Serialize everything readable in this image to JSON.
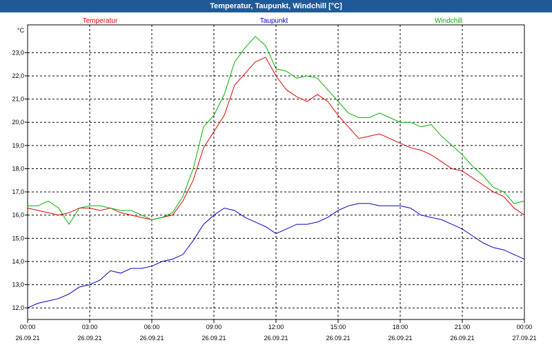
{
  "window": {
    "title": "Temperatur, Taupunkt, Windchill [°C]"
  },
  "chart_data": {
    "type": "line",
    "title": "Temperatur, Taupunkt, Windchill [°C]",
    "ylabel": "°C",
    "ylim": [
      11.5,
      24.2
    ],
    "yticks": [
      12,
      13,
      14,
      15,
      16,
      17,
      18,
      19,
      20,
      21,
      22,
      23
    ],
    "ytick_labels": [
      "12,0",
      "13,0",
      "14,0",
      "15,0",
      "16,0",
      "17,0",
      "18,0",
      "19,0",
      "20,0",
      "21,0",
      "22,0",
      "23,0"
    ],
    "xlim": [
      0,
      24
    ],
    "xticks": [
      0,
      3,
      6,
      9,
      12,
      15,
      18,
      21,
      24
    ],
    "xtick_time": [
      "00:00",
      "03:00",
      "06:00",
      "09:00",
      "12:00",
      "15:00",
      "18:00",
      "21:00",
      "00:00"
    ],
    "xtick_date": [
      "26.09.21",
      "26.09.21",
      "26.09.21",
      "26.09.21",
      "26.09.21",
      "26.09.21",
      "26.09.21",
      "26.09.21",
      "27.09.21"
    ],
    "grid": true,
    "legend_position": "top",
    "series": [
      {
        "name": "Temperatur",
        "color": "#e00000",
        "x": [
          0,
          0.5,
          1,
          1.5,
          2,
          2.5,
          3,
          3.5,
          4,
          4.5,
          5,
          5.5,
          6,
          6.5,
          7,
          7.5,
          8,
          8.5,
          9,
          9.5,
          10,
          10.5,
          11,
          11.5,
          12,
          12.5,
          13,
          13.5,
          14,
          14.5,
          15,
          15.5,
          16,
          16.5,
          17,
          17.5,
          18,
          18.5,
          19,
          19.5,
          20,
          20.5,
          21,
          21.5,
          22,
          22.5,
          23,
          23.5,
          24
        ],
        "values": [
          16.3,
          16.2,
          16.1,
          16.0,
          16.1,
          16.3,
          16.3,
          16.2,
          16.3,
          16.1,
          16.0,
          15.9,
          15.8,
          15.9,
          16.0,
          16.6,
          17.5,
          18.9,
          19.6,
          20.3,
          21.6,
          22.1,
          22.6,
          22.8,
          22.0,
          21.4,
          21.1,
          20.9,
          21.2,
          20.9,
          20.3,
          19.8,
          19.3,
          19.4,
          19.5,
          19.3,
          19.1,
          18.9,
          18.8,
          18.6,
          18.3,
          18.0,
          17.9,
          17.6,
          17.3,
          17.0,
          16.8,
          16.3,
          16.0
        ]
      },
      {
        "name": "Taupunkt",
        "color": "#0000cc",
        "x": [
          0,
          0.5,
          1,
          1.5,
          2,
          2.5,
          3,
          3.5,
          4,
          4.5,
          5,
          5.5,
          6,
          6.5,
          7,
          7.5,
          8,
          8.5,
          9,
          9.5,
          10,
          10.5,
          11,
          11.5,
          12,
          12.5,
          13,
          13.5,
          14,
          14.5,
          15,
          15.5,
          16,
          16.5,
          17,
          17.5,
          18,
          18.5,
          19,
          19.5,
          20,
          20.5,
          21,
          21.5,
          22,
          22.5,
          23,
          23.5,
          24
        ],
        "values": [
          12.0,
          12.2,
          12.3,
          12.4,
          12.6,
          12.9,
          13.0,
          13.2,
          13.6,
          13.5,
          13.7,
          13.7,
          13.8,
          14.0,
          14.1,
          14.3,
          14.9,
          15.6,
          16.0,
          16.3,
          16.2,
          15.9,
          15.7,
          15.5,
          15.2,
          15.4,
          15.6,
          15.6,
          15.7,
          15.9,
          16.2,
          16.4,
          16.5,
          16.5,
          16.4,
          16.4,
          16.4,
          16.3,
          16.0,
          15.9,
          15.8,
          15.6,
          15.4,
          15.1,
          14.8,
          14.6,
          14.5,
          14.3,
          14.1
        ]
      },
      {
        "name": "Windchill",
        "color": "#00b000",
        "x": [
          0,
          0.5,
          1,
          1.5,
          2,
          2.5,
          3,
          3.5,
          4,
          4.5,
          5,
          5.5,
          6,
          6.5,
          7,
          7.5,
          8,
          8.5,
          9,
          9.5,
          10,
          10.5,
          11,
          11.5,
          12,
          12.5,
          13,
          13.5,
          14,
          14.5,
          15,
          15.5,
          16,
          16.5,
          17,
          17.5,
          18,
          18.5,
          19,
          19.5,
          20,
          20.5,
          21,
          21.5,
          22,
          22.5,
          23,
          23.5,
          24
        ],
        "values": [
          16.4,
          16.4,
          16.6,
          16.3,
          15.6,
          16.3,
          16.4,
          16.4,
          16.3,
          16.2,
          16.2,
          16.0,
          15.8,
          15.9,
          16.1,
          16.8,
          18.0,
          19.8,
          20.3,
          21.2,
          22.6,
          23.2,
          23.7,
          23.3,
          22.3,
          22.2,
          21.9,
          22.0,
          21.9,
          21.4,
          20.9,
          20.4,
          20.2,
          20.2,
          20.4,
          20.2,
          20.0,
          20.0,
          19.8,
          19.9,
          19.4,
          19.0,
          18.6,
          18.1,
          17.7,
          17.2,
          17.0,
          16.5,
          16.6
        ]
      }
    ]
  }
}
